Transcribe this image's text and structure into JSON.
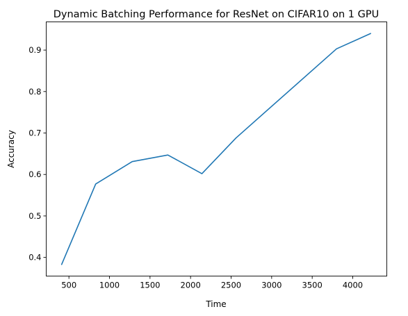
{
  "chart_data": {
    "type": "line",
    "title": "Dynamic Batching Performance for ResNet on CIFAR10 on 1 GPU",
    "xlabel": "Time",
    "ylabel": "Accuracy",
    "xlim": [
      220,
      4420
    ],
    "ylim": [
      0.355,
      0.968
    ],
    "xticks": [
      500,
      1000,
      1500,
      2000,
      2500,
      3000,
      3500,
      4000
    ],
    "xtick_labels": [
      "500",
      "1000",
      "1500",
      "2000",
      "2500",
      "3000",
      "3500",
      "4000"
    ],
    "yticks": [
      0.4,
      0.5,
      0.6,
      0.7,
      0.8,
      0.9
    ],
    "ytick_labels": [
      "0.4",
      "0.5",
      "0.6",
      "0.7",
      "0.8",
      "0.9"
    ],
    "grid": false,
    "series": [
      {
        "color": "#1f77b4",
        "x": [
          410,
          830,
          1280,
          1720,
          2140,
          2560,
          3800,
          4220
        ],
        "y": [
          0.383,
          0.577,
          0.631,
          0.647,
          0.602,
          0.688,
          0.903,
          0.94
        ]
      }
    ]
  }
}
